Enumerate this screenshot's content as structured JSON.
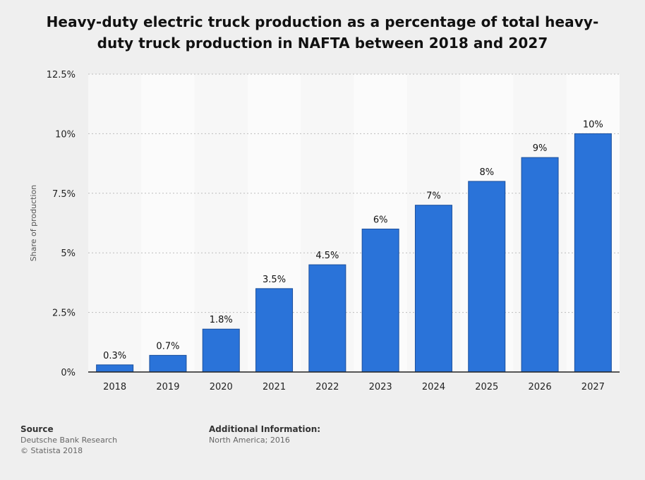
{
  "title_lines": [
    "Heavy-duty electric truck production as a percentage of total heavy-",
    "duty truck production in NAFTA between 2018 and 2027"
  ],
  "chart_data": {
    "type": "bar",
    "title": "Heavy-duty electric truck production as a percentage of total heavy-duty truck production in NAFTA between 2018 and 2027",
    "categories": [
      "2018",
      "2019",
      "2020",
      "2021",
      "2022",
      "2023",
      "2024",
      "2025",
      "2026",
      "2027"
    ],
    "values": [
      0.3,
      0.7,
      1.8,
      3.5,
      4.5,
      6,
      7,
      8,
      9,
      10
    ],
    "data_labels": [
      "0.3%",
      "0.7%",
      "1.8%",
      "3.5%",
      "4.5%",
      "6%",
      "7%",
      "8%",
      "9%",
      "10%"
    ],
    "xlabel": "",
    "ylabel": "Share of production",
    "ylim": [
      0,
      12.5
    ],
    "yticks": [
      0,
      2.5,
      5,
      7.5,
      10,
      12.5
    ],
    "ytick_labels": [
      "0%",
      "2.5%",
      "5%",
      "7.5%",
      "10%",
      "12.5%"
    ],
    "grid": true,
    "bar_color": "#2a73d9",
    "legend": "none"
  },
  "footer": {
    "source_heading": "Source",
    "source_lines": [
      "Deutsche Bank Research",
      "© Statista 2018"
    ],
    "info_heading": "Additional Information:",
    "info_lines": [
      "North America; 2016"
    ]
  }
}
